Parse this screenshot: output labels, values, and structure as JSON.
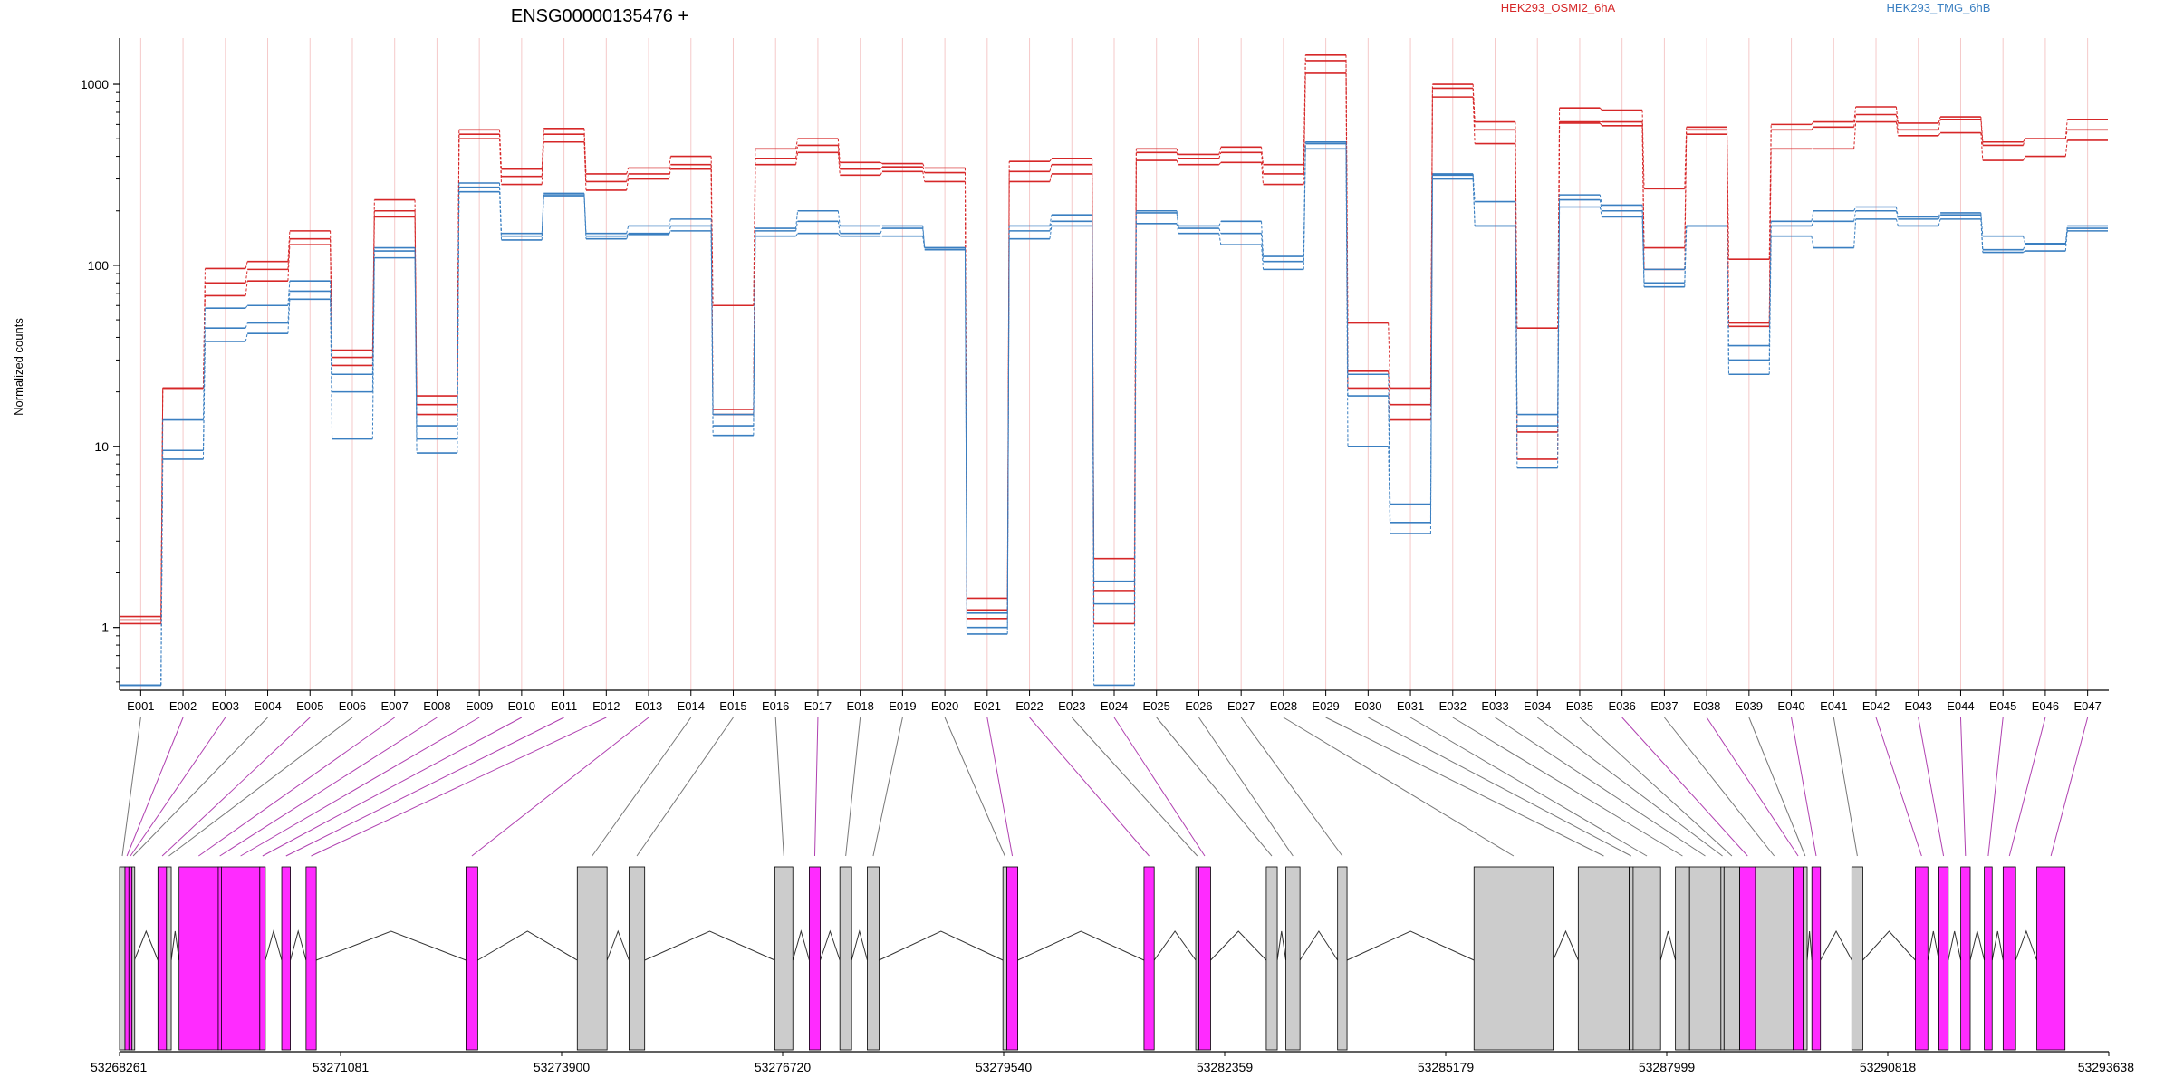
{
  "title": "ENSG00000135476 +",
  "colors": {
    "osmi": "#d62728",
    "tmg": "#3a7fc1",
    "spliced": "#ff2bff",
    "unspliced": "#cccccc",
    "connector_spliced": "#b040b0",
    "connector_unspliced": "#777777",
    "gridline": "#f5c9c9"
  },
  "chart_data": {
    "type": "line",
    "y_scale": "log",
    "ylabel": "Normalized counts",
    "ylim": [
      0.45,
      1800
    ],
    "yticks": [
      1,
      10,
      100,
      1000
    ],
    "legend_placement": "top",
    "series_legend": [
      {
        "name": "HEK293_OSMI2_6hA",
        "color": "#d62728"
      },
      {
        "name": "HEK293_TMG_6hB",
        "color": "#3a7fc1"
      }
    ],
    "categories": [
      "E001",
      "E002",
      "E003",
      "E004",
      "E005",
      "E006",
      "E007",
      "E008",
      "E009",
      "E010",
      "E011",
      "E012",
      "E013",
      "E014",
      "E015",
      "E016",
      "E017",
      "E018",
      "E019",
      "E020",
      "E021",
      "E022",
      "E023",
      "E024",
      "E025",
      "E026",
      "E027",
      "E028",
      "E029",
      "E030",
      "E031",
      "E032",
      "E033",
      "E034",
      "E035",
      "E036",
      "E037",
      "E038",
      "E039",
      "E040",
      "E041",
      "E042",
      "E043",
      "E044",
      "E045",
      "E046",
      "E047"
    ],
    "series": [
      {
        "group": "HEK293_OSMI2_6hA",
        "values": [
          1.15,
          21,
          96,
          105,
          155,
          34,
          230,
          19,
          560,
          340,
          570,
          320,
          345,
          400,
          60,
          440,
          500,
          370,
          365,
          345,
          1.45,
          375,
          390,
          2.4,
          440,
          410,
          450,
          360,
          1450,
          48,
          21,
          1000,
          620,
          45,
          740,
          720,
          265,
          580,
          108,
          600,
          620,
          750,
          610,
          660,
          480,
          500,
          640
        ]
      },
      {
        "group": "HEK293_OSMI2_6hA",
        "values": [
          1.1,
          21,
          80,
          95,
          140,
          31,
          200,
          17,
          530,
          310,
          530,
          290,
          320,
          360,
          16,
          390,
          460,
          340,
          350,
          325,
          1.25,
          330,
          360,
          1.6,
          420,
          390,
          420,
          320,
          1350,
          26,
          17,
          950,
          560,
          12,
          620,
          620,
          125,
          560,
          48,
          560,
          580,
          680,
          560,
          640,
          460,
          500,
          560
        ]
      },
      {
        "group": "HEK293_OSMI2_6hA",
        "values": [
          1.05,
          21,
          68,
          82,
          130,
          28,
          185,
          15,
          500,
          280,
          480,
          260,
          300,
          340,
          15,
          360,
          420,
          315,
          330,
          290,
          1.12,
          290,
          320,
          1.05,
          380,
          360,
          370,
          280,
          1150,
          21,
          14,
          850,
          470,
          8.5,
          610,
          590,
          95,
          530,
          46,
          440,
          440,
          620,
          520,
          540,
          380,
          400,
          490
        ]
      },
      {
        "group": "HEK293_TMG_6hB",
        "values": [
          0.48,
          14,
          58,
          60,
          82,
          25,
          125,
          13,
          285,
          150,
          250,
          150,
          165,
          180,
          15,
          160,
          200,
          165,
          165,
          125,
          1.2,
          165,
          190,
          1.8,
          200,
          165,
          175,
          112,
          480,
          25,
          4.8,
          320,
          225,
          15,
          245,
          215,
          95,
          165,
          36,
          175,
          200,
          210,
          185,
          195,
          145,
          132,
          165
        ]
      },
      {
        "group": "HEK293_TMG_6hB",
        "values": [
          0.48,
          9.5,
          45,
          48,
          72,
          20,
          120,
          11,
          270,
          145,
          245,
          145,
          150,
          165,
          13,
          155,
          175,
          150,
          160,
          125,
          1.0,
          155,
          175,
          1.35,
          195,
          160,
          150,
          105,
          470,
          19,
          3.8,
          315,
          165,
          13,
          230,
          200,
          80,
          165,
          30,
          165,
          175,
          200,
          180,
          190,
          122,
          130,
          160
        ]
      },
      {
        "group": "HEK293_TMG_6hB",
        "values": [
          0.48,
          8.5,
          38,
          42,
          65,
          11,
          110,
          9.2,
          255,
          138,
          240,
          140,
          148,
          155,
          11.5,
          145,
          150,
          145,
          145,
          122,
          0.92,
          140,
          165,
          0.48,
          170,
          150,
          130,
          95,
          440,
          10,
          3.3,
          300,
          165,
          7.6,
          210,
          185,
          76,
          165,
          25,
          145,
          125,
          180,
          165,
          180,
          118,
          120,
          155
        ]
      }
    ]
  },
  "gene_model": {
    "coordinate_labels": [
      "53268261",
      "53271081",
      "53273900",
      "53276720",
      "53279540",
      "53282359",
      "53285179",
      "53287999",
      "53290818",
      "53293638"
    ],
    "coord_start": 53268261,
    "coord_end": 53293638,
    "exons": [
      {
        "id": "E001",
        "start": 53268261,
        "end": 53268330,
        "type": "unspliced"
      },
      {
        "id": "E002",
        "start": 53268330,
        "end": 53268380,
        "type": "spliced"
      },
      {
        "id": "E003",
        "start": 53268380,
        "end": 53268420,
        "type": "spliced"
      },
      {
        "id": "E004",
        "start": 53268420,
        "end": 53268450,
        "type": "unspliced"
      },
      {
        "id": "E005",
        "start": 53268750,
        "end": 53268860,
        "type": "spliced"
      },
      {
        "id": "E006",
        "start": 53268860,
        "end": 53268920,
        "type": "unspliced"
      },
      {
        "id": "E007",
        "start": 53269020,
        "end": 53269520,
        "type": "spliced"
      },
      {
        "id": "E008",
        "start": 53269520,
        "end": 53269560,
        "type": "spliced"
      },
      {
        "id": "E009",
        "start": 53269560,
        "end": 53270050,
        "type": "spliced"
      },
      {
        "id": "E010",
        "start": 53270050,
        "end": 53270120,
        "type": "spliced"
      },
      {
        "id": "E011",
        "start": 53270330,
        "end": 53270440,
        "type": "spliced"
      },
      {
        "id": "E012",
        "start": 53270640,
        "end": 53270770,
        "type": "spliced"
      },
      {
        "id": "E013",
        "start": 53272680,
        "end": 53272830,
        "type": "spliced"
      },
      {
        "id": "E014",
        "start": 53274100,
        "end": 53274480,
        "type": "unspliced"
      },
      {
        "id": "E015",
        "start": 53274760,
        "end": 53274960,
        "type": "unspliced"
      },
      {
        "id": "E016",
        "start": 53276620,
        "end": 53276850,
        "type": "unspliced"
      },
      {
        "id": "E017",
        "start": 53277060,
        "end": 53277200,
        "type": "spliced"
      },
      {
        "id": "E018",
        "start": 53277450,
        "end": 53277600,
        "type": "unspliced"
      },
      {
        "id": "E019",
        "start": 53277800,
        "end": 53277950,
        "type": "unspliced"
      },
      {
        "id": "E020",
        "start": 53279530,
        "end": 53279580,
        "type": "unspliced"
      },
      {
        "id": "E021",
        "start": 53279580,
        "end": 53279720,
        "type": "spliced"
      },
      {
        "id": "E022",
        "start": 53281330,
        "end": 53281460,
        "type": "spliced"
      },
      {
        "id": "E023",
        "start": 53281990,
        "end": 53282030,
        "type": "unspliced"
      },
      {
        "id": "E024",
        "start": 53282030,
        "end": 53282180,
        "type": "spliced"
      },
      {
        "id": "E025",
        "start": 53282890,
        "end": 53283030,
        "type": "unspliced"
      },
      {
        "id": "E026",
        "start": 53283140,
        "end": 53283320,
        "type": "unspliced"
      },
      {
        "id": "E027",
        "start": 53283800,
        "end": 53283920,
        "type": "unspliced"
      },
      {
        "id": "E028",
        "start": 53285540,
        "end": 53286550,
        "type": "unspliced"
      },
      {
        "id": "E029",
        "start": 53286870,
        "end": 53287520,
        "type": "unspliced"
      },
      {
        "id": "E030",
        "start": 53287520,
        "end": 53287570,
        "type": "unspliced"
      },
      {
        "id": "E031",
        "start": 53287570,
        "end": 53287920,
        "type": "unspliced"
      },
      {
        "id": "E032",
        "start": 53288110,
        "end": 53288290,
        "type": "unspliced"
      },
      {
        "id": "E033",
        "start": 53288290,
        "end": 53288690,
        "type": "unspliced"
      },
      {
        "id": "E034",
        "start": 53288690,
        "end": 53288730,
        "type": "unspliced"
      },
      {
        "id": "E035",
        "start": 53288730,
        "end": 53288930,
        "type": "unspliced"
      },
      {
        "id": "E036",
        "start": 53288930,
        "end": 53289130,
        "type": "spliced"
      },
      {
        "id": "E037",
        "start": 53289130,
        "end": 53289610,
        "type": "unspliced"
      },
      {
        "id": "E038",
        "start": 53289610,
        "end": 53289740,
        "type": "spliced"
      },
      {
        "id": "E039",
        "start": 53289740,
        "end": 53289790,
        "type": "unspliced"
      },
      {
        "id": "E040",
        "start": 53289850,
        "end": 53289960,
        "type": "spliced"
      },
      {
        "id": "E041",
        "start": 53290360,
        "end": 53290500,
        "type": "unspliced"
      },
      {
        "id": "E042",
        "start": 53291170,
        "end": 53291330,
        "type": "spliced"
      },
      {
        "id": "E043",
        "start": 53291470,
        "end": 53291590,
        "type": "spliced"
      },
      {
        "id": "E044",
        "start": 53291750,
        "end": 53291870,
        "type": "spliced"
      },
      {
        "id": "E045",
        "start": 53292050,
        "end": 53292150,
        "type": "spliced"
      },
      {
        "id": "E046",
        "start": 53292290,
        "end": 53292450,
        "type": "spliced"
      },
      {
        "id": "E047",
        "start": 53292720,
        "end": 53293080,
        "type": "spliced"
      }
    ]
  }
}
